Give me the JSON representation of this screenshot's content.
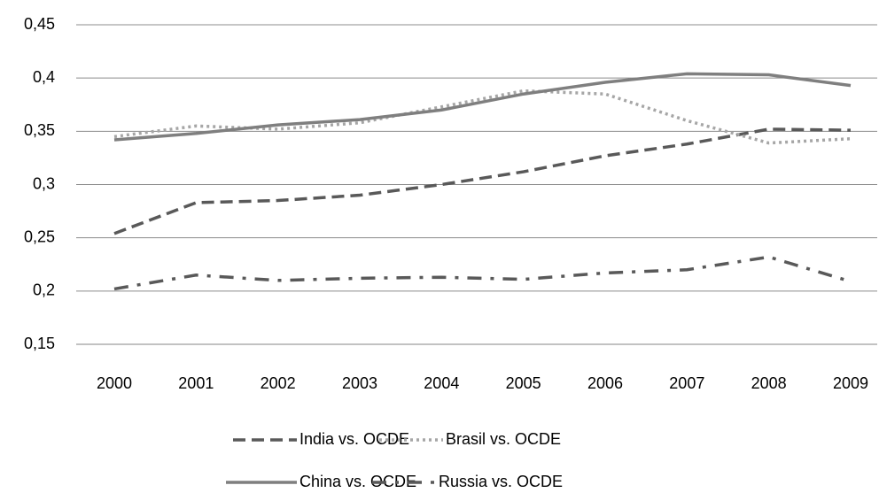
{
  "chart_data": {
    "type": "line",
    "categories": [
      "2000",
      "2001",
      "2002",
      "2003",
      "2004",
      "2005",
      "2006",
      "2007",
      "2008",
      "2009"
    ],
    "series": [
      {
        "name": "India vs. OCDE",
        "color": "#595959",
        "dash": "dashed",
        "values": [
          0.254,
          0.283,
          0.285,
          0.29,
          0.3,
          0.312,
          0.327,
          0.338,
          0.352,
          0.351
        ]
      },
      {
        "name": "Brasil vs. OCDE",
        "color": "#a6a6a6",
        "dash": "dotted",
        "values": [
          0.345,
          0.355,
          0.352,
          0.358,
          0.373,
          0.388,
          0.385,
          0.36,
          0.339,
          0.343
        ]
      },
      {
        "name": "China vs. OCDE",
        "color": "#7f7f7f",
        "dash": "solid",
        "values": [
          0.342,
          0.348,
          0.356,
          0.361,
          0.37,
          0.385,
          0.396,
          0.404,
          0.403,
          0.393
        ]
      },
      {
        "name": "Russia vs. OCDE",
        "color": "#595959",
        "dash": "dashdot",
        "values": [
          0.202,
          0.215,
          0.21,
          0.212,
          0.213,
          0.211,
          0.217,
          0.22,
          0.232,
          0.209
        ]
      }
    ],
    "ylim": [
      0.15,
      0.45
    ],
    "yticks": [
      {
        "value": 0.15,
        "label": "0,15"
      },
      {
        "value": 0.2,
        "label": "0,2"
      },
      {
        "value": 0.25,
        "label": "0,25"
      },
      {
        "value": 0.3,
        "label": "0,3"
      },
      {
        "value": 0.35,
        "label": "0,35"
      },
      {
        "value": 0.4,
        "label": "0,4"
      },
      {
        "value": 0.45,
        "label": "0,45"
      }
    ],
    "grid": true,
    "legend": "bottom"
  }
}
